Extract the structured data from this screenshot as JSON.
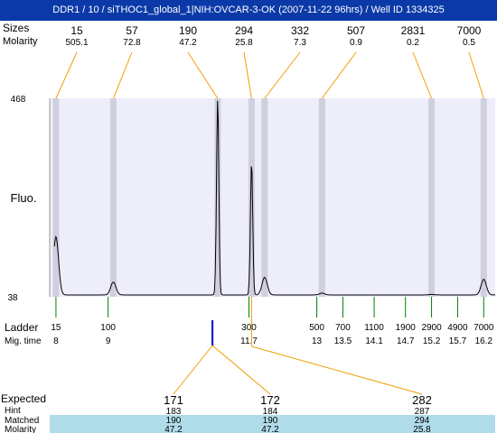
{
  "header": {
    "title": "DDR1 / 10 / siTHOC1_global_1|NIH:OVCAR-3-OK (2007-11-22 96hrs) / Well ID 1334325"
  },
  "row_labels": {
    "sizes": "Sizes",
    "molarity": "Molarity",
    "fluo": "Fluo.",
    "ladder": "Ladder",
    "mig_time": "Mig. time",
    "expected": "Expected",
    "hint": "Hint",
    "matched": "Matched",
    "molarity_bottom": "Molarity"
  },
  "colors": {
    "title_bar": "#0b3aa8",
    "plot_bg": "#eeeefb",
    "band": "#cfcfdf",
    "callout": "#f0a000",
    "ladder_tick": "#008000",
    "marker": "#0000cc",
    "expected_mismatch": "#cc0000",
    "table_bg": "#b0dcea"
  },
  "chart_data": {
    "type": "line",
    "ylim": [
      38,
      468
    ],
    "y_ticks": [
      "468",
      "38"
    ],
    "peaks": [
      {
        "size": "15",
        "molarity": "505.1",
        "time": 8.0,
        "height": 168
      },
      {
        "size": "57",
        "molarity": "72.8",
        "time": 9.1,
        "height": 70
      },
      {
        "size": "190",
        "molarity": "47.2",
        "time": 11.1,
        "height": 468
      },
      {
        "size": "294",
        "molarity": "25.8",
        "time": 11.75,
        "height": 330
      },
      {
        "size": "332",
        "molarity": "7.3",
        "time": 12.0,
        "height": 80
      },
      {
        "size": "507",
        "molarity": "0.9",
        "time": 13.1,
        "height": 46
      },
      {
        "size": "2831",
        "molarity": "0.2",
        "time": 15.2,
        "height": 43
      },
      {
        "size": "7000",
        "molarity": "0.5",
        "time": 16.2,
        "height": 76
      }
    ],
    "ladder": [
      {
        "size": "15",
        "time": "8"
      },
      {
        "size": "100",
        "time": "9"
      },
      {
        "size": "300",
        "time": "11.7"
      },
      {
        "size": "500",
        "time": "13"
      },
      {
        "size": "700",
        "time": "13.5"
      },
      {
        "size": "1100",
        "time": "14.1"
      },
      {
        "size": "1900",
        "time": "14.7"
      },
      {
        "size": "2900",
        "time": "15.2"
      },
      {
        "size": "4900",
        "time": "15.7"
      },
      {
        "size": "7000",
        "time": "16.2"
      }
    ],
    "marker_time": 11.0,
    "expected": [
      {
        "expected": "171",
        "hint": "183",
        "matched": "190",
        "molarity": "47.2",
        "mismatch": true
      },
      {
        "expected": "172",
        "hint": "184",
        "matched": "190",
        "molarity": "47.2",
        "mismatch": false
      },
      {
        "expected": "282",
        "hint": "287",
        "matched": "294",
        "molarity": "25.8",
        "mismatch": true
      }
    ]
  }
}
